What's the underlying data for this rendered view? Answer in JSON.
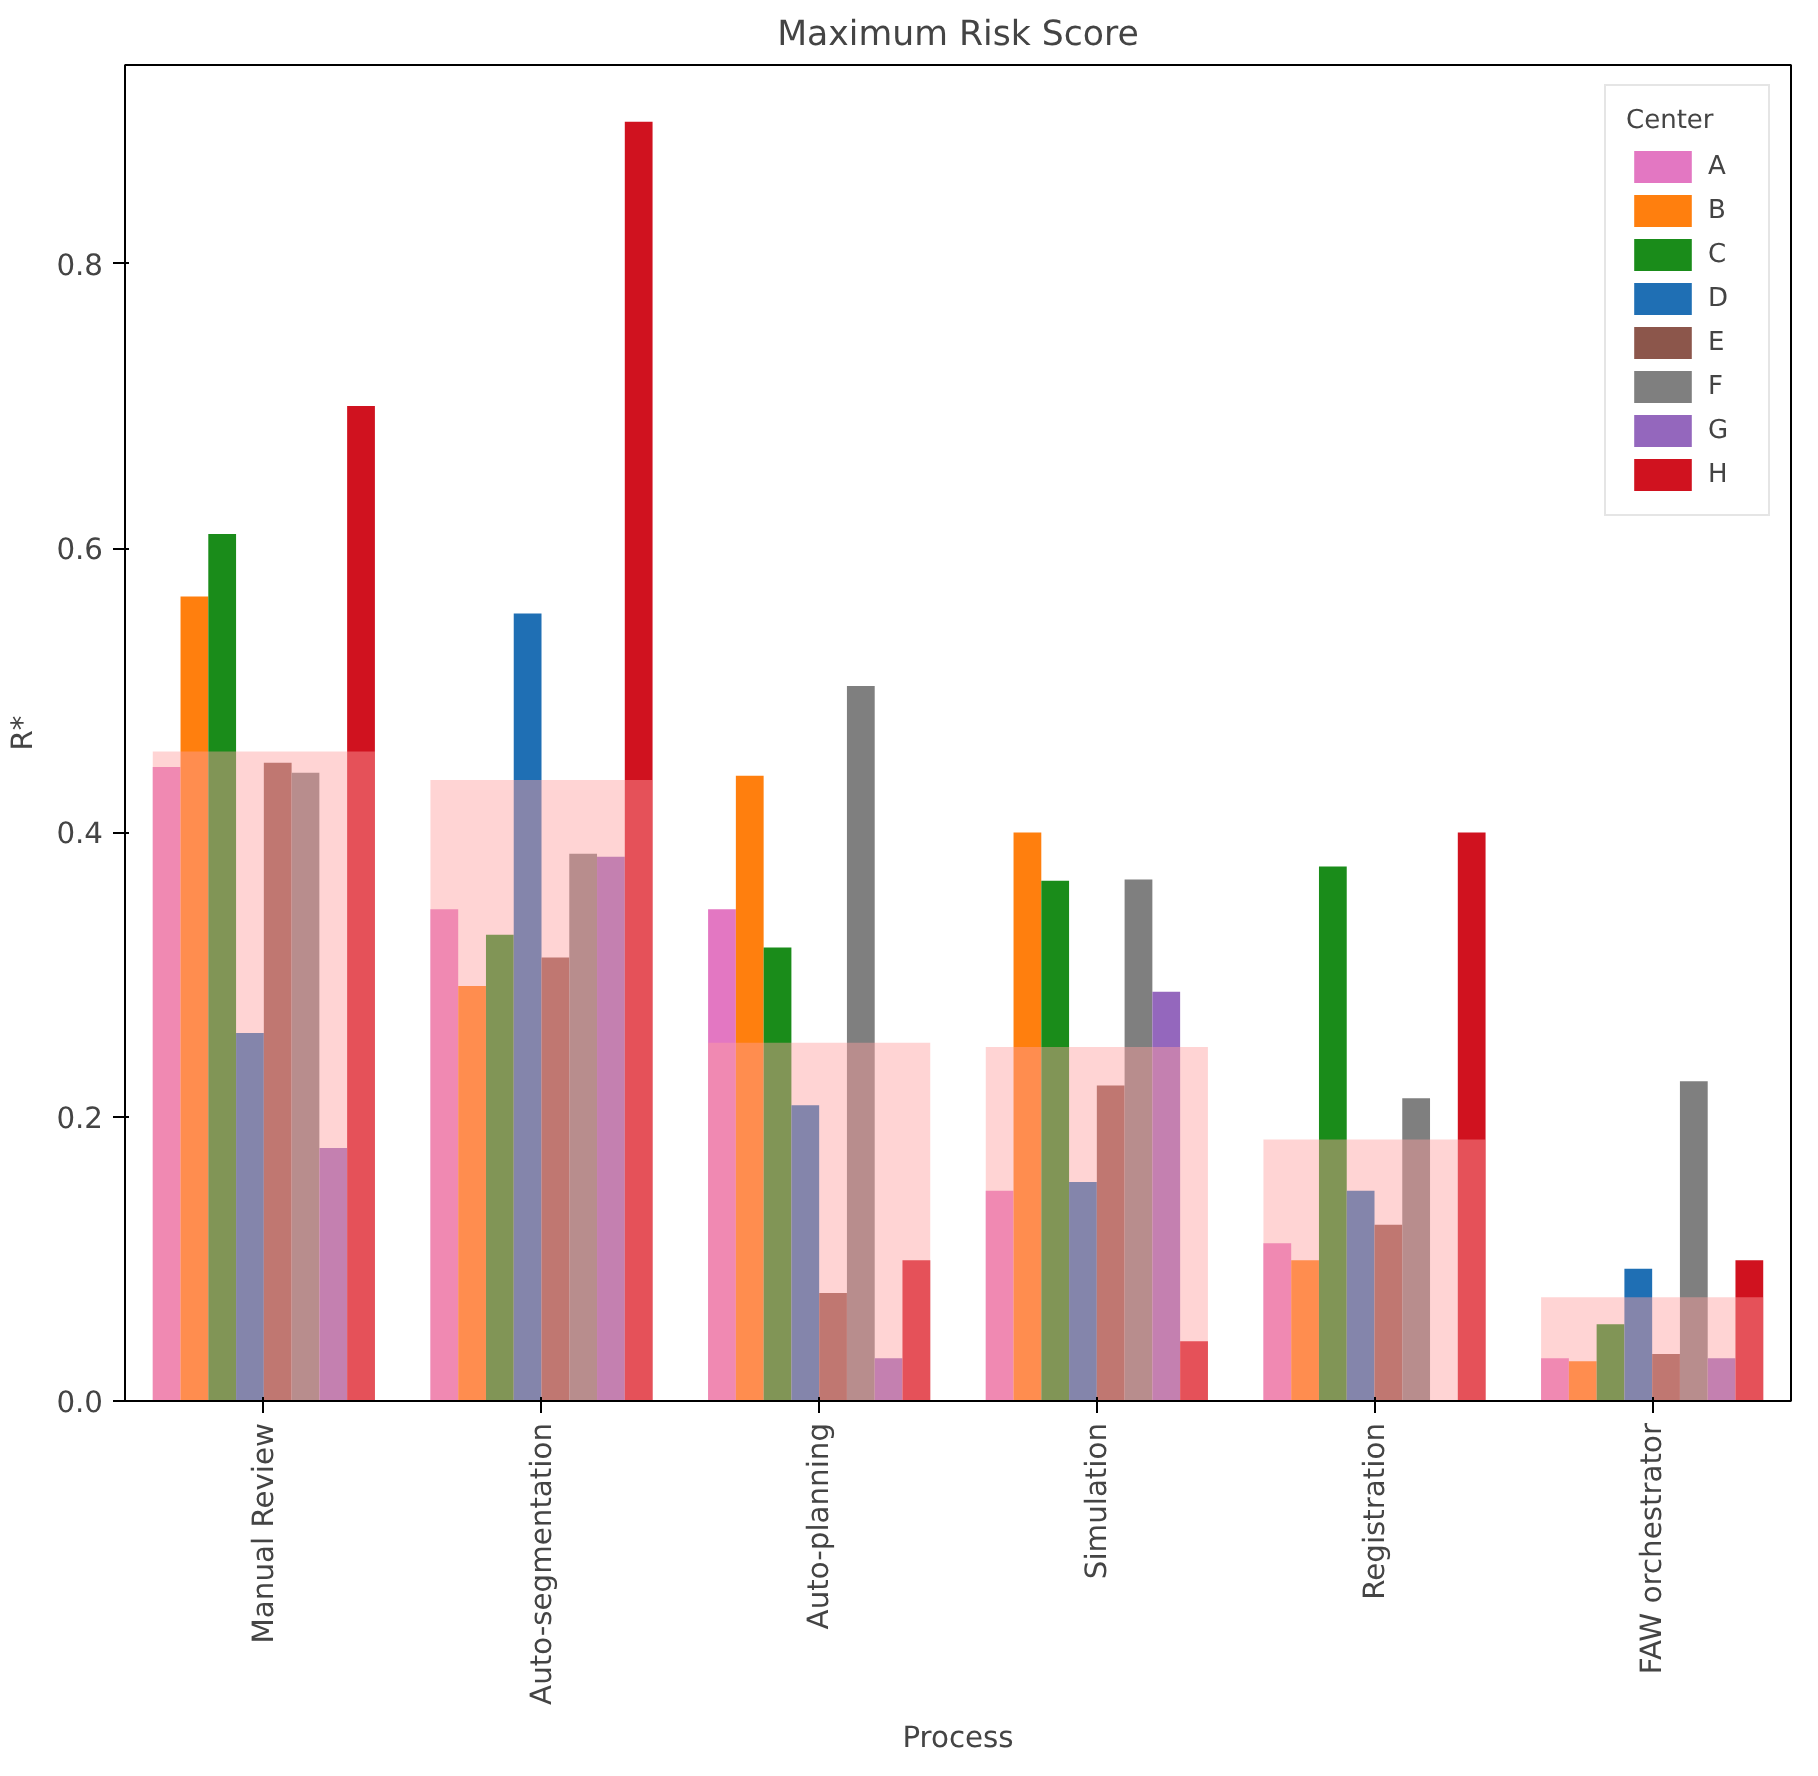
{
  "chart_data": {
    "type": "bar",
    "title": "Maximum Risk Score",
    "xlabel": "Process",
    "ylabel": "R*",
    "legend_title": "Center",
    "legend": "top right",
    "grid": false,
    "categories": [
      "Manual Review",
      "Auto-segmentation",
      "Auto-planning",
      "Simulation",
      "Registration",
      "FAW orchestrator"
    ],
    "ylim": [
      0,
      0.94
    ],
    "yticks": [
      {
        "value": 0,
        "label": "0.0"
      },
      0.2,
      0.4,
      0.6,
      0.8
    ],
    "series": [
      {
        "color": "#ffa0a0",
        "values": [
          0.457,
          0.437,
          0.252,
          0.249,
          0.184,
          0.073
        ]
      },
      {
        "name": "A",
        "color": "#e377c2",
        "values": [
          0.446,
          0.346,
          0.346,
          0.148,
          0.111,
          0.03
        ]
      },
      {
        "name": "B",
        "color": "#ff7f0e",
        "values": [
          0.566,
          0.292,
          0.44,
          0.4,
          0.099,
          0.028
        ]
      },
      {
        "name": "C",
        "color": "#1a8c1a",
        "values": [
          0.61,
          0.328,
          0.319,
          0.366,
          0.376,
          0.054
        ]
      },
      {
        "name": "D",
        "color": "#1f6fb4",
        "values": [
          0.259,
          0.554,
          0.208,
          0.154,
          0.148,
          0.093
        ]
      },
      {
        "name": "E",
        "color": "#8c564b",
        "values": [
          0.449,
          0.312,
          0.076,
          0.222,
          0.124,
          0.033
        ]
      },
      {
        "name": "F",
        "color": "#7f7f7f",
        "values": [
          0.442,
          0.385,
          0.503,
          0.367,
          0.213,
          0.225
        ]
      },
      {
        "name": "G",
        "color": "#9467bd",
        "values": [
          0.178,
          0.383,
          0.03,
          0.288,
          0,
          0.03
        ]
      },
      {
        "name": "H",
        "color": "#d0121f",
        "values": [
          0.7,
          0.9,
          0.099,
          0.042,
          0.4,
          0.099
        ]
      }
    ]
  }
}
